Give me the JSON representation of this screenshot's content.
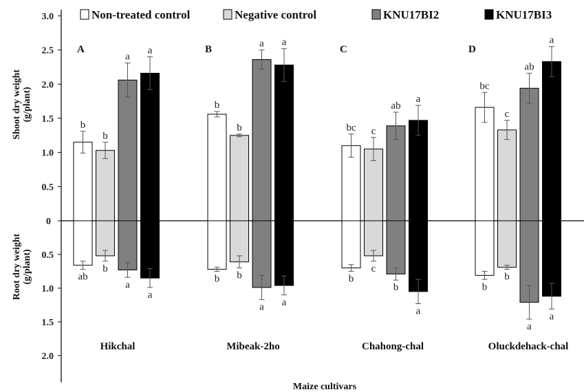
{
  "chart_data": {
    "type": "bar",
    "xlabel": "Maize cultivars",
    "ylabel_top": [
      "Shoot dry weight",
      "(g/plant)"
    ],
    "ylabel_bottom": [
      "Root dry weight",
      "(g/plant)"
    ],
    "ylim_top": [
      0,
      3.0
    ],
    "ylim_bottom": [
      0,
      2.0
    ],
    "yticks_top": [
      "3.0",
      "2.5",
      "2.0",
      "1.5",
      "1.0",
      "0.5"
    ],
    "ytick_zero": "0",
    "yticks_bottom": [
      "0.5",
      "1.0",
      "1.5",
      "2.0"
    ],
    "legend": [
      {
        "name": "Non-treated control",
        "color": "#ffffff"
      },
      {
        "name": "Negative control",
        "color": "#d9d9d9"
      },
      {
        "name": "KNU17BI2",
        "color": "#808080"
      },
      {
        "name": "KNU17BI3",
        "color": "#000000"
      }
    ],
    "groups": [
      {
        "panel": "A",
        "cultivar": "Hikchal",
        "shoot": [
          1.15,
          1.03,
          2.06,
          2.16
        ],
        "shoot_err": [
          0.16,
          0.12,
          0.25,
          0.24
        ],
        "shoot_sig": [
          "b",
          "b",
          "a",
          "a"
        ],
        "root": [
          0.66,
          0.52,
          0.73,
          0.85
        ],
        "root_err": [
          0.06,
          0.08,
          0.11,
          0.14
        ],
        "root_sig": [
          "ab",
          "b",
          "a",
          "a"
        ]
      },
      {
        "panel": "B",
        "cultivar": "Mibeak-2ho",
        "shoot": [
          1.56,
          1.25,
          2.36,
          2.28
        ],
        "shoot_err": [
          0.04,
          0.02,
          0.14,
          0.24
        ],
        "shoot_sig": [
          "b",
          "b",
          "a",
          "a"
        ],
        "root": [
          0.72,
          0.61,
          0.99,
          0.96
        ],
        "root_err": [
          0.03,
          0.09,
          0.18,
          0.14
        ],
        "root_sig": [
          "b",
          "b",
          "a",
          "a"
        ]
      },
      {
        "panel": "C",
        "cultivar": "Chahong-chal",
        "shoot": [
          1.1,
          1.05,
          1.39,
          1.47
        ],
        "shoot_err": [
          0.17,
          0.17,
          0.2,
          0.22
        ],
        "shoot_sig": [
          "bc",
          "c",
          "ab",
          "a"
        ],
        "root": [
          0.7,
          0.52,
          0.79,
          1.05
        ],
        "root_err": [
          0.05,
          0.08,
          0.09,
          0.18
        ],
        "root_sig": [
          "b",
          "c",
          "b",
          "a"
        ]
      },
      {
        "panel": "D",
        "cultivar": "Oluckdehack-chal",
        "shoot": [
          1.66,
          1.33,
          1.94,
          2.33
        ],
        "shoot_err": [
          0.22,
          0.14,
          0.22,
          0.22
        ],
        "shoot_sig": [
          "bc",
          "c",
          "ab",
          "a"
        ],
        "root": [
          0.81,
          0.69,
          1.21,
          1.12
        ],
        "root_err": [
          0.06,
          0.03,
          0.25,
          0.19
        ],
        "root_sig": [
          "b",
          "b",
          "a",
          "a"
        ]
      }
    ]
  }
}
